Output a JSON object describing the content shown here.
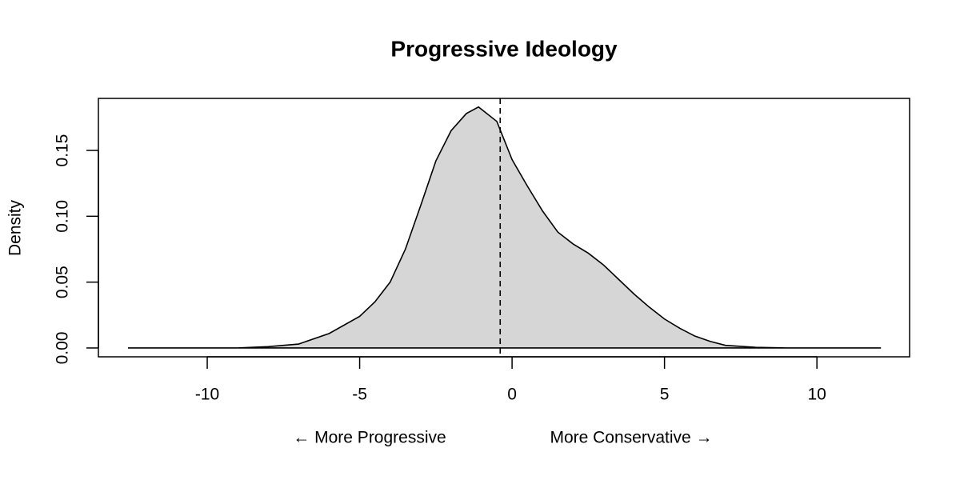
{
  "chart_data": {
    "type": "density",
    "title": "Progressive Ideology",
    "y_label": "Density",
    "x_annotations": [
      "← More Progressive",
      "More Conservative →"
    ],
    "x": [
      -12.6,
      -9,
      -8,
      -7,
      -6,
      -5,
      -4.5,
      -4,
      -3.5,
      -3,
      -2.5,
      -2,
      -1.5,
      -1.1,
      -0.5,
      0,
      0.5,
      1,
      1.5,
      2,
      2.5,
      3,
      3.5,
      4,
      4.5,
      5,
      5.5,
      6,
      6.5,
      7,
      8,
      9,
      10,
      12.1
    ],
    "values": [
      0,
      0,
      0.001,
      0.003,
      0.011,
      0.024,
      0.035,
      0.05,
      0.075,
      0.108,
      0.142,
      0.165,
      0.178,
      0.183,
      0.172,
      0.143,
      0.123,
      0.104,
      0.088,
      0.079,
      0.072,
      0.063,
      0.052,
      0.041,
      0.031,
      0.022,
      0.015,
      0.009,
      0.005,
      0.002,
      0.0005,
      0,
      0,
      0
    ],
    "fill_color": "#d6d6d6",
    "line_color": "#000000",
    "reference_line": {
      "x": -0.39,
      "style": "dashed"
    },
    "xlim": [
      -13.57,
      13.04
    ],
    "ylim": [
      -0.0067,
      0.1895
    ],
    "xticks": [
      -10,
      -5,
      0,
      5,
      10
    ],
    "yticks": [
      {
        "value": 0,
        "label": "0.00"
      },
      {
        "value": 0.05,
        "label": "0.05"
      },
      {
        "value": 0.1,
        "label": "0.10"
      },
      {
        "value": 0.15,
        "label": "0.15"
      }
    ],
    "grid": false
  }
}
